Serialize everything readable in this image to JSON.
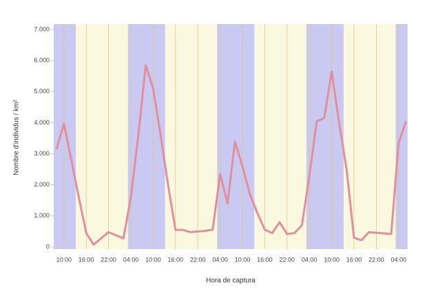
{
  "chart_data": {
    "type": "line",
    "x_label": "Hora de captura",
    "y_label": "Nombre d'individus / km²",
    "categories": [
      null,
      "10:00",
      null,
      null,
      "16:00",
      null,
      null,
      "22:00",
      null,
      null,
      "04:00",
      null,
      null,
      "10:00",
      null,
      null,
      "16:00",
      null,
      null,
      "22:00",
      null,
      null,
      "04:00",
      null,
      null,
      "10:00",
      null,
      null,
      "16:00",
      null,
      null,
      "22:00",
      null,
      null,
      "04:00",
      null,
      null,
      "10:00",
      null,
      null,
      "16:00",
      null,
      null,
      "22:00",
      null,
      null,
      "04:00",
      null
    ],
    "series": [
      {
        "name": null,
        "color": "#e0909c",
        "values": [
          3150,
          3980,
          2800,
          1600,
          450,
          80,
          280,
          480,
          380,
          280,
          1600,
          3600,
          5850,
          5100,
          3600,
          2000,
          550,
          550,
          480,
          500,
          520,
          560,
          2350,
          1400,
          3400,
          2600,
          1700,
          1100,
          560,
          450,
          800,
          420,
          450,
          700,
          2300,
          4050,
          4150,
          5650,
          4000,
          2500,
          300,
          220,
          480,
          460,
          440,
          420,
          3350,
          4050
        ]
      }
    ],
    "bands": [
      [
        -0.4,
        2.6
      ],
      [
        9.6,
        14.6
      ],
      [
        21.6,
        26.6
      ],
      [
        33.6,
        38.6
      ],
      [
        45.6,
        47.2
      ]
    ],
    "band_color": "#c9c9f2",
    "background_color": "#fbf8e0",
    "grid_color": "#d8c98a",
    "ylim": [
      0,
      7000
    ],
    "yticks": [
      0,
      {
        "value": 1000,
        "label": "1.000"
      },
      {
        "value": 2000,
        "label": "2.000"
      },
      {
        "value": 3000,
        "label": "3.000"
      },
      {
        "value": 4000,
        "label": "4.000"
      },
      {
        "value": 5000,
        "label": "5.000"
      },
      {
        "value": 6000,
        "label": "6.000"
      },
      {
        "value": 7000,
        "label": "7.000"
      }
    ],
    "grid": true
  }
}
